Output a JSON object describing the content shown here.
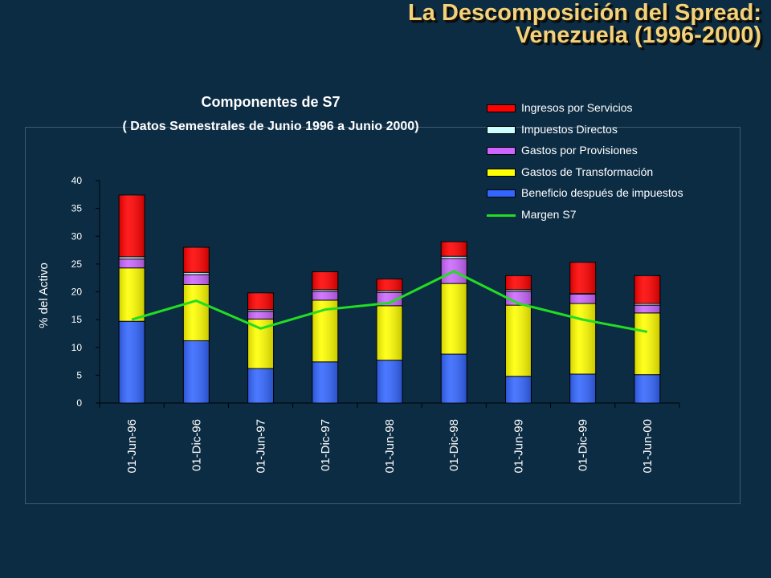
{
  "slide": {
    "title_line1": "La Descomposición del Spread:",
    "title_line2": "Venezuela (1996-2000)"
  },
  "chart_data": {
    "type": "bar",
    "stacked": true,
    "title": "Componentes de S7",
    "subtitle": "( Datos Semestrales de Junio 1996 a Junio 2000)",
    "xlabel": "",
    "ylabel": "% del Activo",
    "ylim": [
      0,
      40
    ],
    "yticks": [
      0,
      5,
      10,
      15,
      20,
      25,
      30,
      35,
      40
    ],
    "categories": [
      "01-Jun-96",
      "01-Dic-96",
      "01-Jun-97",
      "01-Dic-97",
      "01-Jun-98",
      "01-Dic-98",
      "01-Jun-99",
      "01-Dic-99",
      "01-Jun-00"
    ],
    "series": [
      {
        "name": "Beneficio después de impuestos",
        "color": "#3366ff",
        "values": [
          14.7,
          11.2,
          6.2,
          7.4,
          7.7,
          8.8,
          4.8,
          5.2,
          5.1
        ]
      },
      {
        "name": "Gastos de Transformación",
        "color": "#ffff00",
        "values": [
          9.6,
          10.1,
          8.9,
          11.1,
          9.8,
          12.7,
          12.8,
          12.7,
          11.1
        ]
      },
      {
        "name": "Gastos por Provisiones",
        "color": "#cc66ff",
        "values": [
          1.6,
          1.8,
          1.4,
          1.6,
          2.4,
          4.5,
          2.5,
          1.7,
          1.4
        ]
      },
      {
        "name": "Impuestos Directos",
        "color": "#ccffff",
        "values": [
          0.4,
          0.4,
          0.3,
          0.3,
          0.3,
          0.4,
          0.3,
          0.1,
          0.3
        ]
      },
      {
        "name": "Ingresos por Servicios",
        "color": "#ff0000",
        "values": [
          11.1,
          4.5,
          3.0,
          3.2,
          2.1,
          2.6,
          2.5,
          5.6,
          5.0
        ]
      }
    ],
    "line_series": {
      "name": "Margen S7",
      "color": "#22dd22",
      "values": [
        15.0,
        18.4,
        13.4,
        16.8,
        18.0,
        23.7,
        17.9,
        15.0,
        12.8
      ]
    },
    "legend_position": "top-right",
    "legend": [
      {
        "label": "Ingresos por Servicios",
        "color": "#ff0000",
        "kind": "box"
      },
      {
        "label": "Impuestos Directos",
        "color": "#ccffff",
        "kind": "box"
      },
      {
        "label": "Gastos por Provisiones",
        "color": "#cc66ff",
        "kind": "box"
      },
      {
        "label": "Gastos de Transformación",
        "color": "#ffff00",
        "kind": "box"
      },
      {
        "label": "Beneficio después de impuestos",
        "color": "#3366ff",
        "kind": "box"
      },
      {
        "label": "Margen S7",
        "color": "#22dd22",
        "kind": "line"
      }
    ],
    "grid": false
  }
}
